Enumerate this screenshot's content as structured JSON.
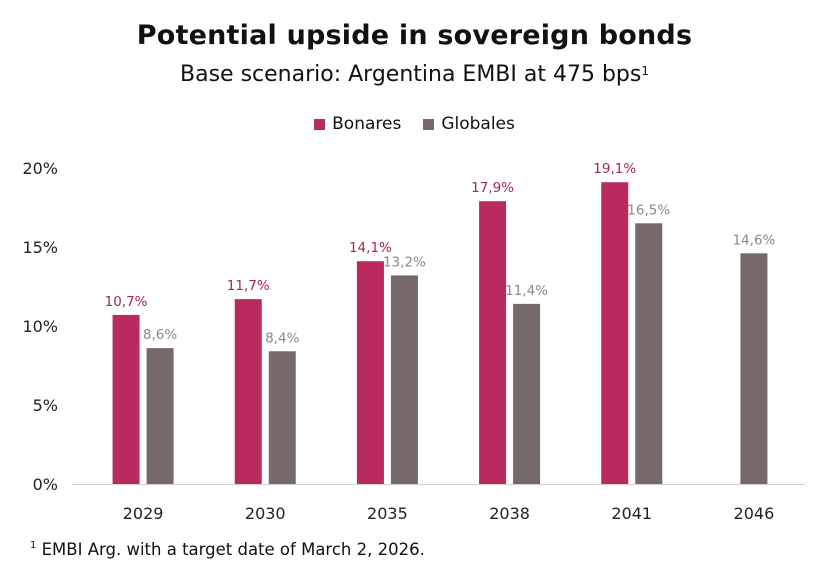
{
  "chart_data": {
    "type": "bar",
    "title": "Potential upside in sovereign bonds",
    "subtitle": "Base scenario: Argentina EMBI at 475 bps",
    "subtitle_sup": "1",
    "xlabel": "",
    "ylabel": "",
    "ylim": [
      0,
      20
    ],
    "yticks": [
      0,
      5,
      10,
      15,
      20
    ],
    "ytick_labels": [
      "0%",
      "5%",
      "10%",
      "15%",
      "20%"
    ],
    "grid": false,
    "legend_position": "top-center",
    "categories": [
      "2029",
      "2030",
      "2035",
      "2038",
      "2041",
      "2046"
    ],
    "series": [
      {
        "name": "Bonares",
        "color": "#b92a5e",
        "label_color": "#a4284f",
        "values": [
          10.7,
          11.7,
          14.1,
          17.9,
          19.1,
          null
        ],
        "labels": [
          "10,7%",
          "11,7%",
          "14,1%",
          "17,9%",
          "19,1%",
          null
        ]
      },
      {
        "name": "Globales",
        "color": "#77686a",
        "label_color": "#8a8a8a",
        "values": [
          8.6,
          8.4,
          13.2,
          11.4,
          16.5,
          14.6
        ],
        "labels": [
          "8,6%",
          "8,4%",
          "13,2%",
          "11,4%",
          "16,5%",
          "14,6%"
        ]
      }
    ]
  },
  "footnote": {
    "sup": "1",
    "text": "EMBI Arg. with a target date of March 2, 2026."
  }
}
